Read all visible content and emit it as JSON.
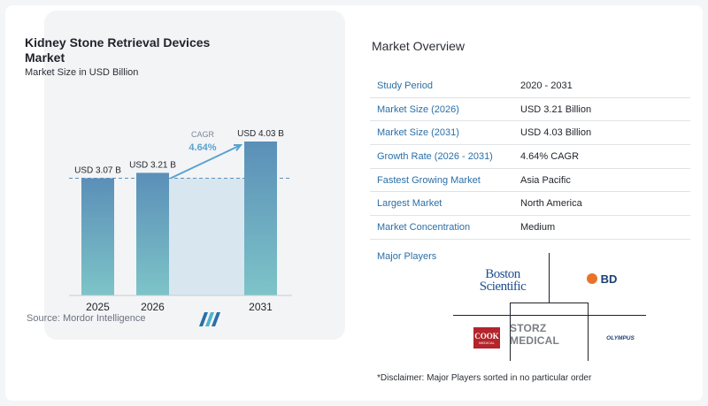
{
  "chart_data": {
    "type": "bar",
    "title": "Kidney Stone Retrieval Devices Market",
    "subtitle": "Market Size in USD Billion",
    "categories": [
      "2025",
      "2026",
      "2031"
    ],
    "values": [
      3.07,
      3.21,
      4.03
    ],
    "value_labels": [
      "USD 3.07 B",
      "USD 3.21 B",
      "USD 4.03 B"
    ],
    "cagr_label": "CAGR",
    "cagr_value": "4.64%",
    "ylim": [
      0,
      4.03
    ],
    "colors": {
      "bar_top": "#5b8fb8",
      "bar_bottom": "#7dc4c8",
      "shade": "#d8e6f0",
      "arrow": "#5aa3cf"
    }
  },
  "source": "Source: Mordor Intelligence",
  "overview": {
    "title": "Market Overview",
    "rows": [
      {
        "label": "Study Period",
        "value": "2020 - 2031"
      },
      {
        "label": "Market Size (2026)",
        "value": "USD 3.21 Billion"
      },
      {
        "label": "Market Size (2031)",
        "value": "USD 4.03 Billion"
      },
      {
        "label": "Growth Rate (2026 - 2031)",
        "value": "4.64% CAGR"
      },
      {
        "label": "Fastest Growing Market",
        "value": "Asia Pacific"
      },
      {
        "label": "Largest Market",
        "value": "North America"
      },
      {
        "label": "Market Concentration",
        "value": "Medium"
      }
    ]
  },
  "players": {
    "title": "Major Players",
    "boston_line1": "Boston",
    "boston_line2": "Scientific",
    "bd": "BD",
    "cook_main": "COOK",
    "cook_sub": "MEDICAL",
    "storz": "STORZ MEDICAL",
    "olympus": "OLYMPUS"
  },
  "disclaimer": "*Disclaimer: Major Players sorted in no particular order"
}
